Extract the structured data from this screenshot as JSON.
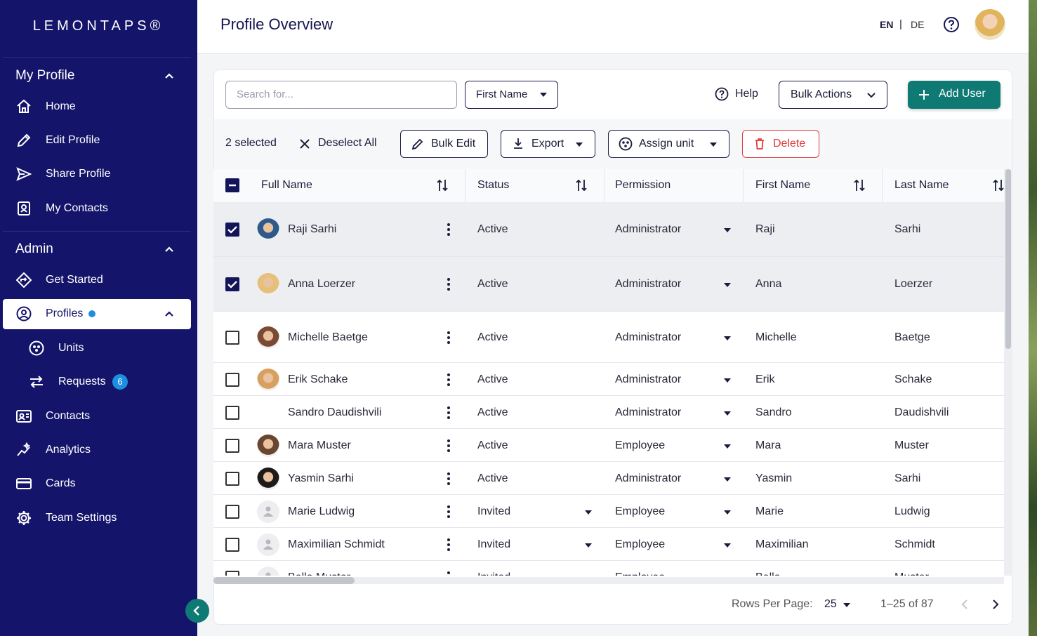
{
  "sidebar": {
    "logo": "LEMONTAPS®",
    "sections": [
      {
        "title": "My Profile",
        "items": [
          {
            "label": "Home"
          },
          {
            "label": "Edit Profile"
          },
          {
            "label": "Share Profile"
          },
          {
            "label": "My Contacts"
          }
        ]
      },
      {
        "title": "Admin",
        "items": [
          {
            "label": "Get Started"
          },
          {
            "label": "Profiles",
            "active": true
          },
          {
            "label": "Units",
            "sub": true
          },
          {
            "label": "Requests",
            "sub": true,
            "badge": "6"
          },
          {
            "label": "Contacts"
          },
          {
            "label": "Analytics"
          },
          {
            "label": "Cards"
          },
          {
            "label": "Team Settings"
          }
        ]
      }
    ]
  },
  "header": {
    "title": "Profile Overview",
    "languages": [
      "EN",
      "DE"
    ],
    "separator": "|"
  },
  "toolbar": {
    "search_placeholder": "Search for...",
    "filter": "First Name",
    "help": "Help",
    "bulk_actions": "Bulk Actions",
    "add_user": "Add User"
  },
  "selection_bar": {
    "count": "2 selected",
    "deselect": "Deselect All",
    "actions": [
      "Bulk Edit",
      "Export",
      "Assign unit",
      "Delete"
    ]
  },
  "table": {
    "columns": [
      "Full Name",
      "Status",
      "Permission",
      "First Name",
      "Last Name"
    ],
    "rows": [
      {
        "selected": true,
        "full_name": "Raji Sarhi",
        "status": "Active",
        "permission": "Administrator",
        "first_name": "Raji",
        "last_name": "Sarhi"
      },
      {
        "selected": true,
        "full_name": "Anna Loerzer",
        "status": "Active",
        "permission": "Administrator",
        "first_name": "Anna",
        "last_name": "Loerzer"
      },
      {
        "selected": false,
        "full_name": "Michelle Baetge",
        "status": "Active",
        "permission": "Administrator",
        "first_name": "Michelle",
        "last_name": "Baetge"
      },
      {
        "selected": false,
        "full_name": "Erik Schake",
        "status": "Active",
        "permission": "Administrator",
        "first_name": "Erik",
        "last_name": "Schake"
      },
      {
        "selected": false,
        "full_name": "Sandro Daudishvili",
        "status": "Active",
        "permission": "Administrator",
        "first_name": "Sandro",
        "last_name": "Daudishvili"
      },
      {
        "selected": false,
        "full_name": "Mara Muster",
        "status": "Active",
        "permission": "Employee",
        "first_name": "Mara",
        "last_name": "Muster"
      },
      {
        "selected": false,
        "full_name": "Yasmin Sarhi",
        "status": "Active",
        "permission": "Administrator",
        "first_name": "Yasmin",
        "last_name": "Sarhi"
      },
      {
        "selected": false,
        "full_name": "Marie Ludwig",
        "status": "Invited",
        "permission": "Employee",
        "first_name": "Marie",
        "last_name": "Ludwig"
      },
      {
        "selected": false,
        "full_name": "Maximilian Schmidt",
        "status": "Invited",
        "permission": "Employee",
        "first_name": "Maximilian",
        "last_name": "Schmidt"
      },
      {
        "selected": false,
        "full_name": "Bella Muster",
        "status": "Invited",
        "permission": "Employee",
        "first_name": "Bella",
        "last_name": "Muster"
      }
    ]
  },
  "footer": {
    "rows_per_page_label": "Rows Per Page:",
    "rows_per_page": "25",
    "range": "1–25 of 87"
  }
}
